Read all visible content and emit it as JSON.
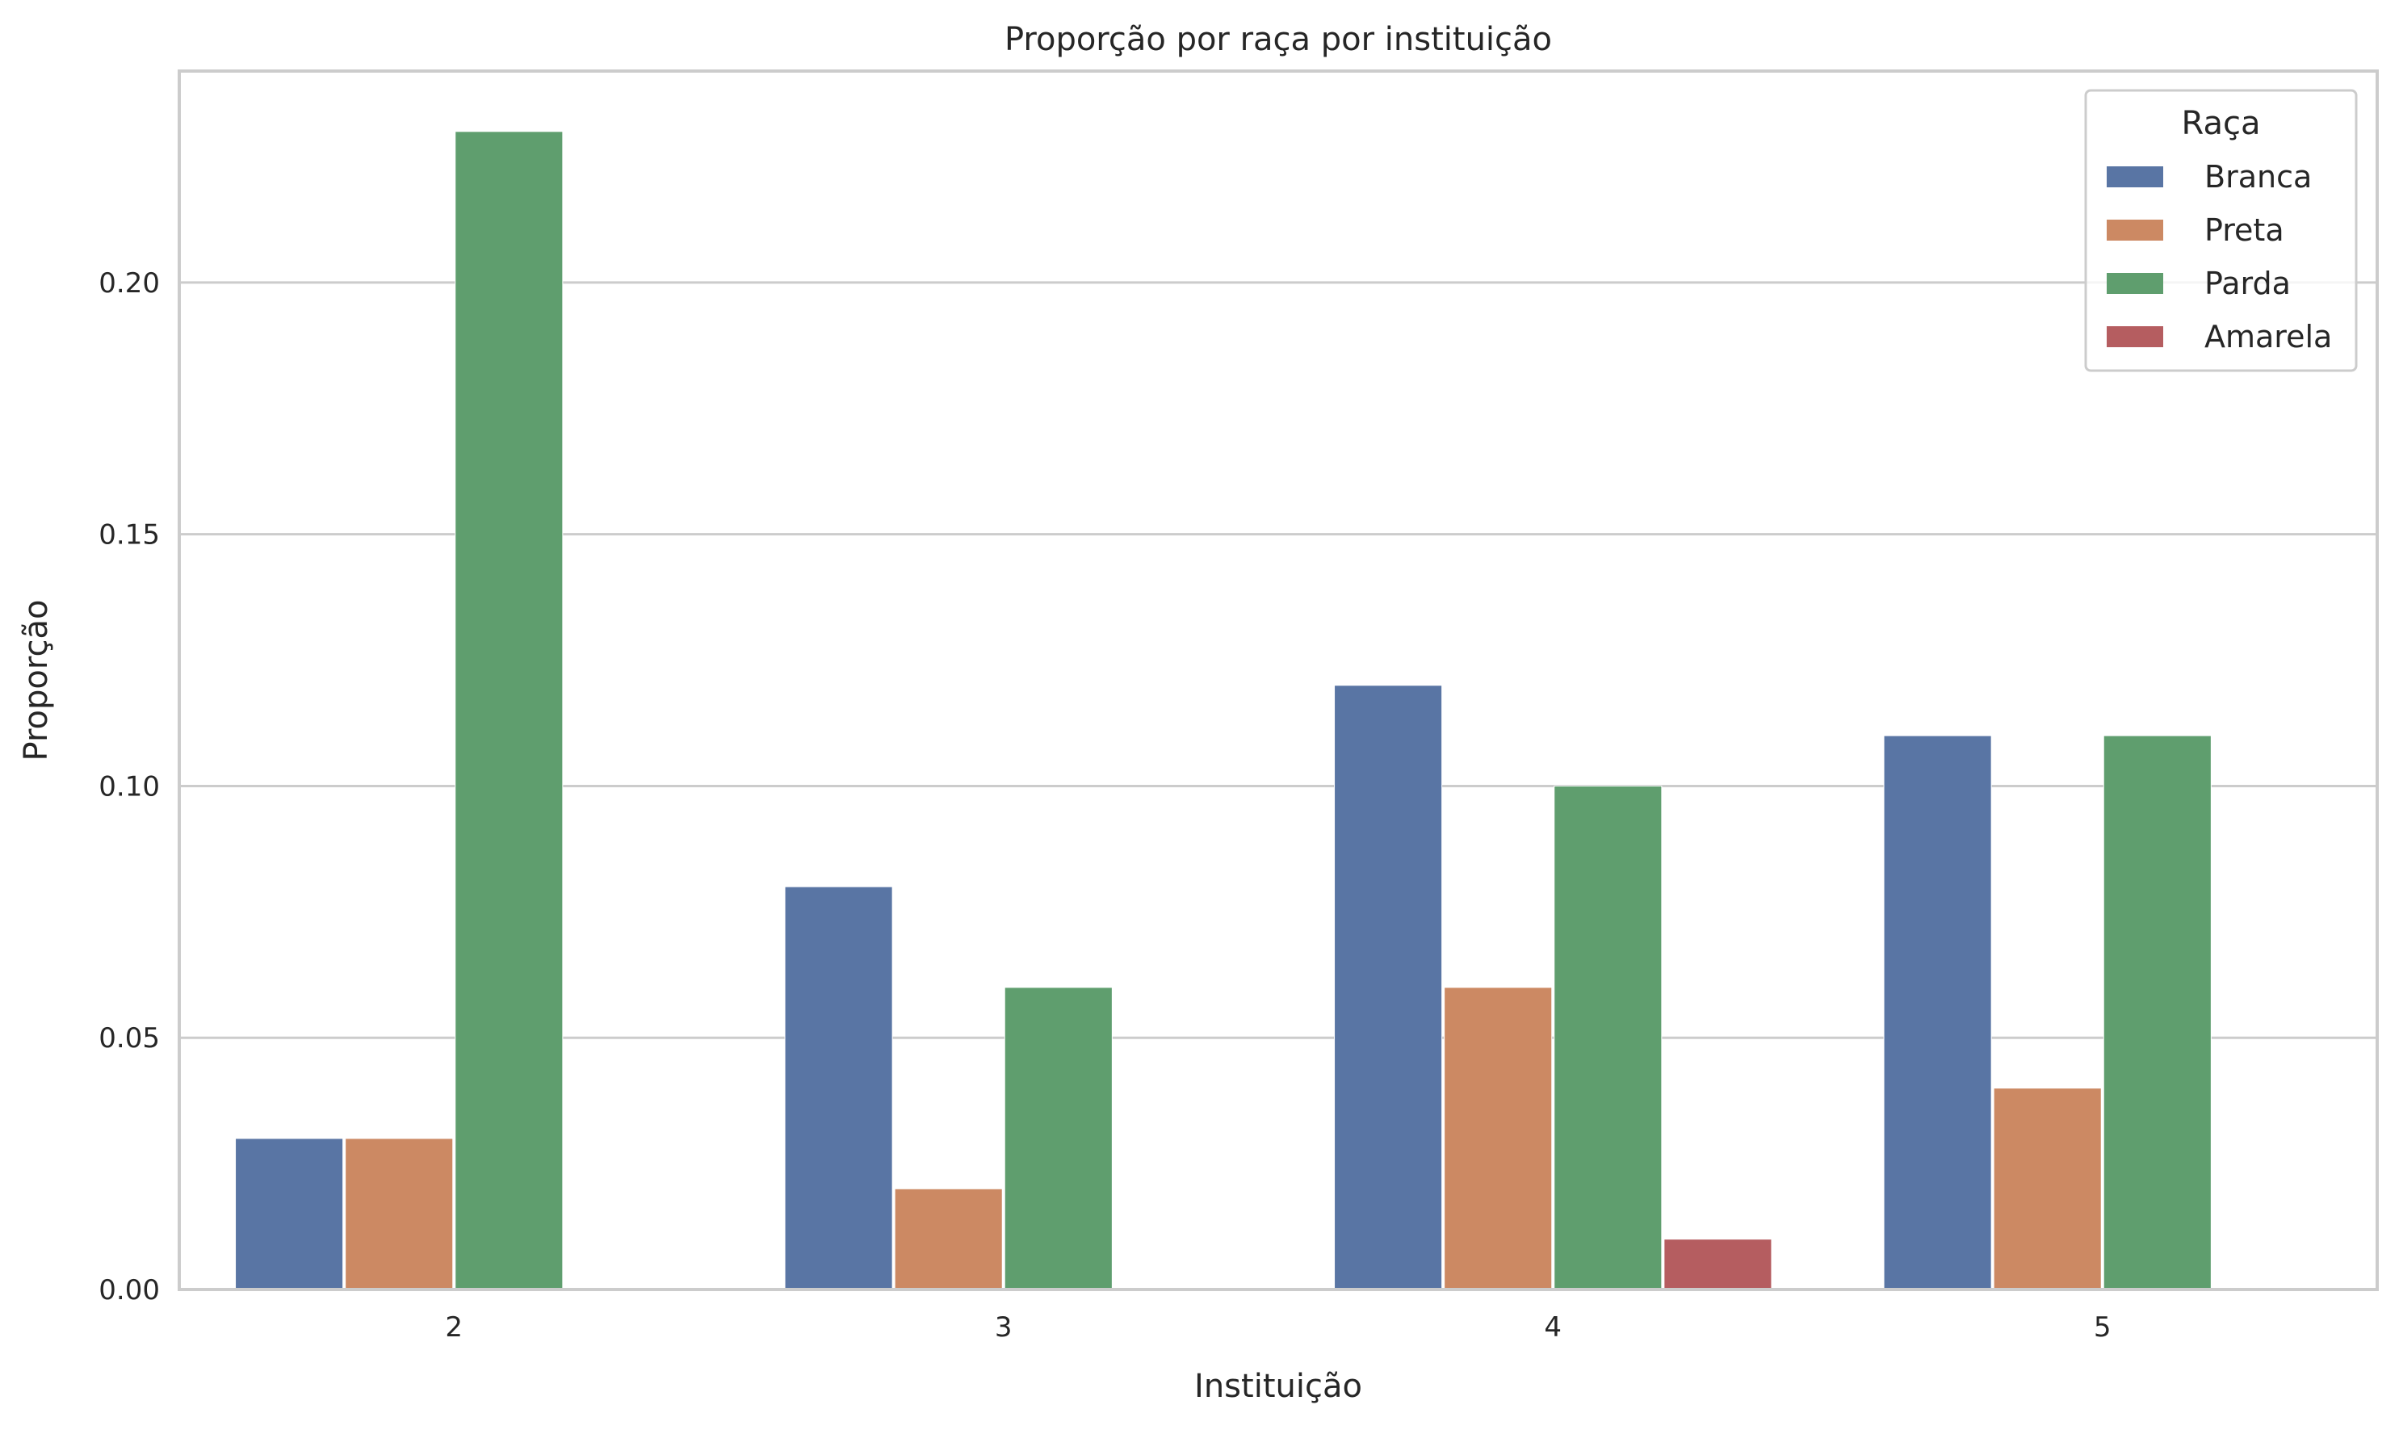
{
  "chart_data": {
    "type": "bar",
    "title": "Proporção por raça por instituição",
    "xlabel": "Instituição",
    "ylabel": "Proporção",
    "categories": [
      "2",
      "3",
      "4",
      "5"
    ],
    "ylim": [
      0,
      0.242
    ],
    "yticks": [
      0.0,
      0.05,
      0.1,
      0.15,
      0.2
    ],
    "ytick_labels": [
      "0.00",
      "0.05",
      "0.10",
      "0.15",
      "0.20"
    ],
    "grid": "horizontal",
    "legend": {
      "title": "Raça",
      "position": "top-right"
    },
    "series": [
      {
        "name": "Branca",
        "color": "#5975a4",
        "values": [
          0.03,
          0.08,
          0.12,
          0.11
        ]
      },
      {
        "name": "Preta",
        "color": "#cc8963",
        "values": [
          0.03,
          0.02,
          0.06,
          0.04
        ]
      },
      {
        "name": "Parda",
        "color": "#5f9e6e",
        "values": [
          0.23,
          0.06,
          0.1,
          0.11
        ]
      },
      {
        "name": "Amarela",
        "color": "#b55d60",
        "values": [
          0.0,
          0.0,
          0.01,
          0.0
        ]
      }
    ]
  }
}
